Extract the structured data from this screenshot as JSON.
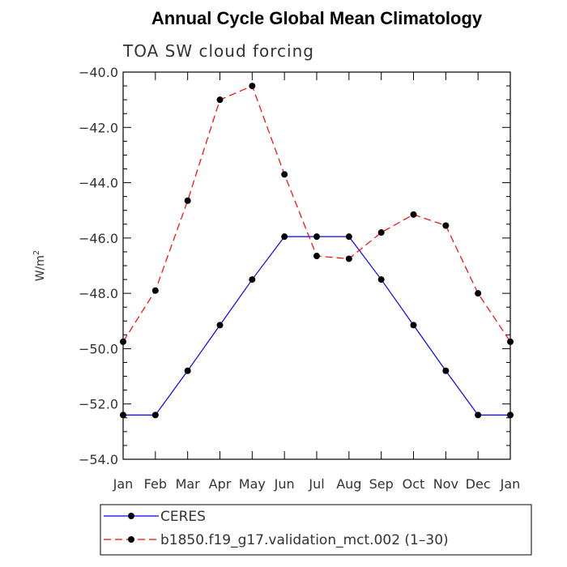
{
  "chart_data": {
    "type": "line",
    "title": "Annual Cycle Global Mean Climatology",
    "subtitle": "TOA SW cloud forcing",
    "xlabel": "",
    "ylabel": "W/m",
    "ylabel_sup": "2",
    "ylim": [
      -54,
      -40
    ],
    "yticks": [
      -54,
      -52,
      -50,
      -48,
      -46,
      -44,
      -42,
      -40
    ],
    "ytick_labels": [
      "−54.0",
      "−52.0",
      "−50.0",
      "−48.0",
      "−46.0",
      "−44.0",
      "−42.0",
      "−40.0"
    ],
    "categories": [
      "Jan",
      "Feb",
      "Mar",
      "Apr",
      "May",
      "Jun",
      "Jul",
      "Aug",
      "Sep",
      "Oct",
      "Nov",
      "Dec",
      "Jan"
    ],
    "grid": false,
    "legend_position": "bottom",
    "series": [
      {
        "name": "CERES",
        "color": "#0000ff",
        "dash": "solid",
        "values": [
          -52.4,
          -52.4,
          -50.8,
          -49.15,
          -47.5,
          -45.95,
          -45.95,
          -45.95,
          -47.5,
          -49.15,
          -50.8,
          -52.4,
          -52.4
        ]
      },
      {
        "name": "b1850.f19_g17.validation_mct.002 (1–30)",
        "color": "#ff0000",
        "dash": "dashed",
        "values": [
          -49.75,
          -47.9,
          -44.65,
          -41.0,
          -40.5,
          -43.7,
          -46.65,
          -46.75,
          -45.8,
          -45.15,
          -45.55,
          -48.0,
          -49.75
        ]
      }
    ]
  }
}
